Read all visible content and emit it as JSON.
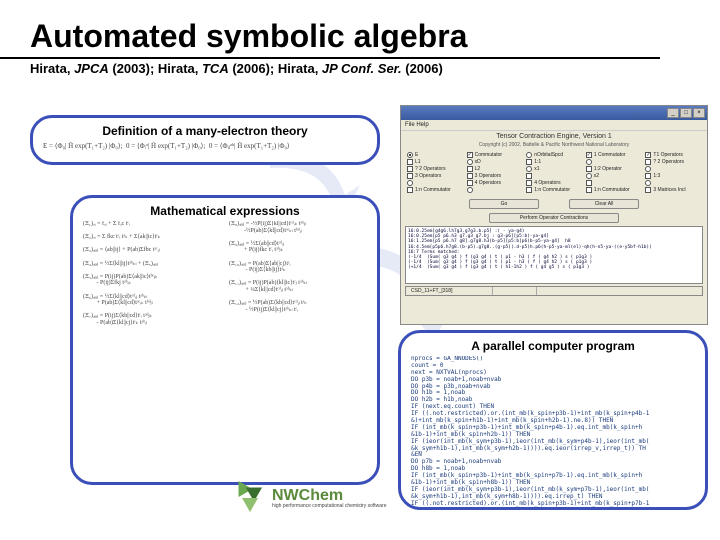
{
  "title": "Automated symbolic algebra",
  "citation": {
    "p1_author": "Hirata, ",
    "p1_journal": "JPCA",
    "p1_year": " (2003); ",
    "p2_author": "Hirata, ",
    "p2_journal": "TCA",
    "p2_year": " (2006); ",
    "p3_author": "Hirata, ",
    "p3_journal": "JP Conf. Ser.",
    "p3_year": " (2006)"
  },
  "bubbles": {
    "definition": {
      "header": "Definition of a many-electron theory",
      "formula": "E = ⟨Φ₀| H̄ exp(T₁+T₂) |Φ₀⟩;  0 = ⟨Φᵢᵃ| H̄ exp(T₁+T₂) |Φ₀⟩;  0 = ⟨Φᵢⱼᵃᵇ| H̄ exp(T₁+T₂) |Φ₀⟩"
    },
    "math": {
      "header": "Mathematical expressions",
      "col1": "(Ξ₁)ₐᵢ = fₐᵢ + Σ fₐc tᶜᵢ\n\n(Ξ₂)ₐᵢ = Σ fkc tᶜᵢ tᵃₖ + Σ⟨ak||ic⟩tᶜₖ\n\n(Ξ₃)ₐᵦᵢⱼ = ⟨ab||ij⟩ + P(ab)Σfbc tᵃᶜᵢⱼ\n\n(Ξ₄)ₐᵦᵢⱼ = ½Σ⟨kl||ij⟩tᵃᵇₖₗ + (Ξ₅)ₐᵦᵢⱼ\n\n(Ξ₅)ₐᵦᵢⱼ = P(ij)P(ab)Σ⟨ak||ic⟩tᵇᶜⱼₖ\n         - P(ij)Σfkj tᵃᵇᵢₖ\n\n(Ξ₆)ₐᵦᵢⱼ = ½Σ⟨kl||cd⟩tᶜᵈᵢⱼ tᵃᵇₖₗ\n         + P(ab)Σ⟨kl||cd⟩tᵃᶜᵢₖ tᵇᵈⱼₗ\n\n(Ξ₇)ₐᵦᵢⱼ = P(ij)Σ⟨kb||cd⟩tᶜᵢ tᵃᵈⱼₖ\n         - P(ab)Σ⟨kl||cj⟩tᶜₖ tᵃᵇᵢₗ",
      "col2": "(Ξ₈)ₐᵦᵢⱼ = -½P(ij)Σ⟨kl||cd⟩tᶜᵈᵢₖ tᵃᵇⱼₗ\n          -½P(ab)Σ⟨kl||cd⟩tᵃᶜₖₗ tᵇᵈᵢⱼ\n\n(Ξ₉)ₐᵦᵢⱼ = ½Σ⟨ab||cd⟩tᶜᵈᵢⱼ\n          + P(ij)fkc tᶜᵢ tᵃᵇⱼₖ\n\n(Ξ₁₀)ₐᵦᵢⱼ = P(ab)Σ⟨ab||cj⟩tᶜᵢ\n           - P(ij)Σ⟨kb||ij⟩tᵃₖ\n\n(Ξ₁₁)ₐᵦᵢⱼ = P(ij)P(ab)⟨kl||ic⟩tᶜⱼ tᵃᵇₖₗ\n           + ¼Σ⟨kl||cd⟩tᶜᵈᵢⱼ tᵃᵇₖₗ\n\n(Ξ₁₂)ₐᵦᵢⱼ = ½P(ab)Σ⟨kb||cd⟩tᶜᵈᵢⱼ tᵃₖ\n           - ½P(ij)Σ⟨kl||cj⟩tᵃᵇₖₗ tᶜᵢ"
    },
    "program": {
      "header": "A parallel computer program",
      "code": "nprocs = GA_NNODES()\ncount = 0\nnext = NXTVAL(nprocs)\nDO p3b = noab+1,noab+nvab\nDO p4b = p3b,noab+nvab\nDO h1b = 1,noab\nDO h2b = h1b,noab\nIF (next.eq.count) THEN\nIF ((.not.restricted).or.(int_mb(k_spin+p3b-1)+int_mb(k_spin+p4b-1\n&)+int_mb(k_spin+h1b-1)+int_mb(k_spin+h2b-1).ne.8)) THEN\nIF (int_mb(k_spin+p3b-1)+int_mb(k_spin+p4b-1).eq.int_mb(k_spin+h\n&1b-1)+int_mb(k_spin+h2b-1)) THEN\nIF (ieor(int_mb(k_sym+p3b-1),ieor(int_mb(k_sym+p4b-1),ieor(int_mb(\n&k_sym+h1b-1),int_mb(k_sym+h2b-1)))).eq.ieor(irrep_v,irrep_t)) TH\n&EN\nDO p7b = noab+1,noab+nvab\nDO h8b = 1,noab\nIF (int_mb(k_spin+p3b-1)+int_mb(k_spin+p7b-1).eq.int_mb(k_spin+h\n&1b-1)+int_mb(k_spin+h8b-1)) THEN\nIF (ieor(int_mb(k_sym+p3b-1),ieor(int_mb(k_sym+p7b-1),ieor(int_mb(\n&k_sym+h1b-1),int_mb(k_sym+h8b-1)))).eq.irrep_t) THEN\nIF ((.not.restricted).or.(int_mb(k_spin+p3b-1)+int_mb(k_spin+p7b-1"
    }
  },
  "gui": {
    "menu": "File  Help",
    "heading": "Tensor Contraction Engine, Version 1",
    "subheading": "Copyright (c) 2002, Battelle & Pacific Northwest National Laboratory",
    "checks": [
      [
        "r",
        "E",
        "filled"
      ],
      [
        "c",
        "Commutator",
        "x"
      ],
      [
        "r",
        "nOrbitalSpcd",
        ""
      ],
      [
        "c",
        "1 Commutator",
        "x"
      ],
      [
        "c",
        "T1 Operators",
        "x"
      ],
      [
        "c",
        "L1",
        ""
      ],
      [
        "r",
        "xD",
        ""
      ],
      [
        "c",
        "1:1",
        ""
      ],
      [
        "r",
        "",
        ""
      ],
      [
        "c",
        "? 2 Operators",
        ""
      ],
      [
        "c",
        "? 2 Operators",
        ""
      ],
      [
        "c",
        "L2",
        ""
      ],
      [
        "r",
        "x1",
        ""
      ],
      [
        "c",
        "1:2 Operator",
        ""
      ],
      [
        "r",
        "",
        ""
      ],
      [
        "c",
        "3 Operators",
        ""
      ],
      [
        "c",
        "3 Operators",
        ""
      ],
      [
        "c",
        "",
        ""
      ],
      [
        "r",
        "x2",
        ""
      ],
      [
        "c",
        "1:3",
        ""
      ],
      [
        "r",
        "",
        ""
      ],
      [
        "c",
        "4 Operators",
        ""
      ],
      [
        "c",
        "4 Operators",
        ""
      ],
      [
        "c",
        "",
        ""
      ],
      [
        "r",
        "",
        ""
      ],
      [
        "c",
        "1:n Commutator",
        ""
      ],
      [
        "r",
        "",
        ""
      ],
      [
        "c",
        "1:n Commutator",
        ""
      ],
      [
        "c",
        "1:n Commutator",
        ""
      ],
      [
        "c",
        "3 Matrices Incl",
        ""
      ]
    ],
    "btn_go": "Go",
    "btn_clear": "Clear All",
    "btn_center": "Perform Operator Contractions",
    "output": "16:0.25em[g4g6.lh7g3.g7g3.b.p5] :( - ya-g4)\n16:0.25em[p5 p6.h3 g7.g3 g7.bj : g3-p6][p5:b)-ya-g4]\n16:1.25em[p5 p6.h7 g8].g7g8.h3(b-p5][p5:b]p6(b-p5-ya-g4]  h8\n16:4.5em[p5p6.h7g8.(b-p5).g7g8..(g-p5)(.d-p5)h.p6(h-p5-ya-ml(el)-qh(h-n5-ya-((e-y5bf-h1b))\n16:7 Terms matched:\n(-1/4  )Sum( g3 g4 ) f (g3 g4 ) t ( p1 - h3 ) f ( g4 h2 ) s ( p1g3 )\n(-1/4  )Sum( g3 g4 ) f (g3 g4 ) t ( p1 - h3 ) f ( g4 h2 ) s ( p1g3 )\n(+1/4  )Sum( g3 g4 ) f (g3 g4 ) t ( h1-1h2 ) f ( g4 g5 ) s ( p1g3 )",
    "status_left": "CSD_11+FT_[318]",
    "status_right": ""
  },
  "logo": {
    "main": "NWChem",
    "sub": "high performance computational chemistry software"
  },
  "colors": {
    "bubble_border": "#3a4fb8",
    "gui_bg": "#ece9d8",
    "logo_green": "#5a8a3a"
  }
}
